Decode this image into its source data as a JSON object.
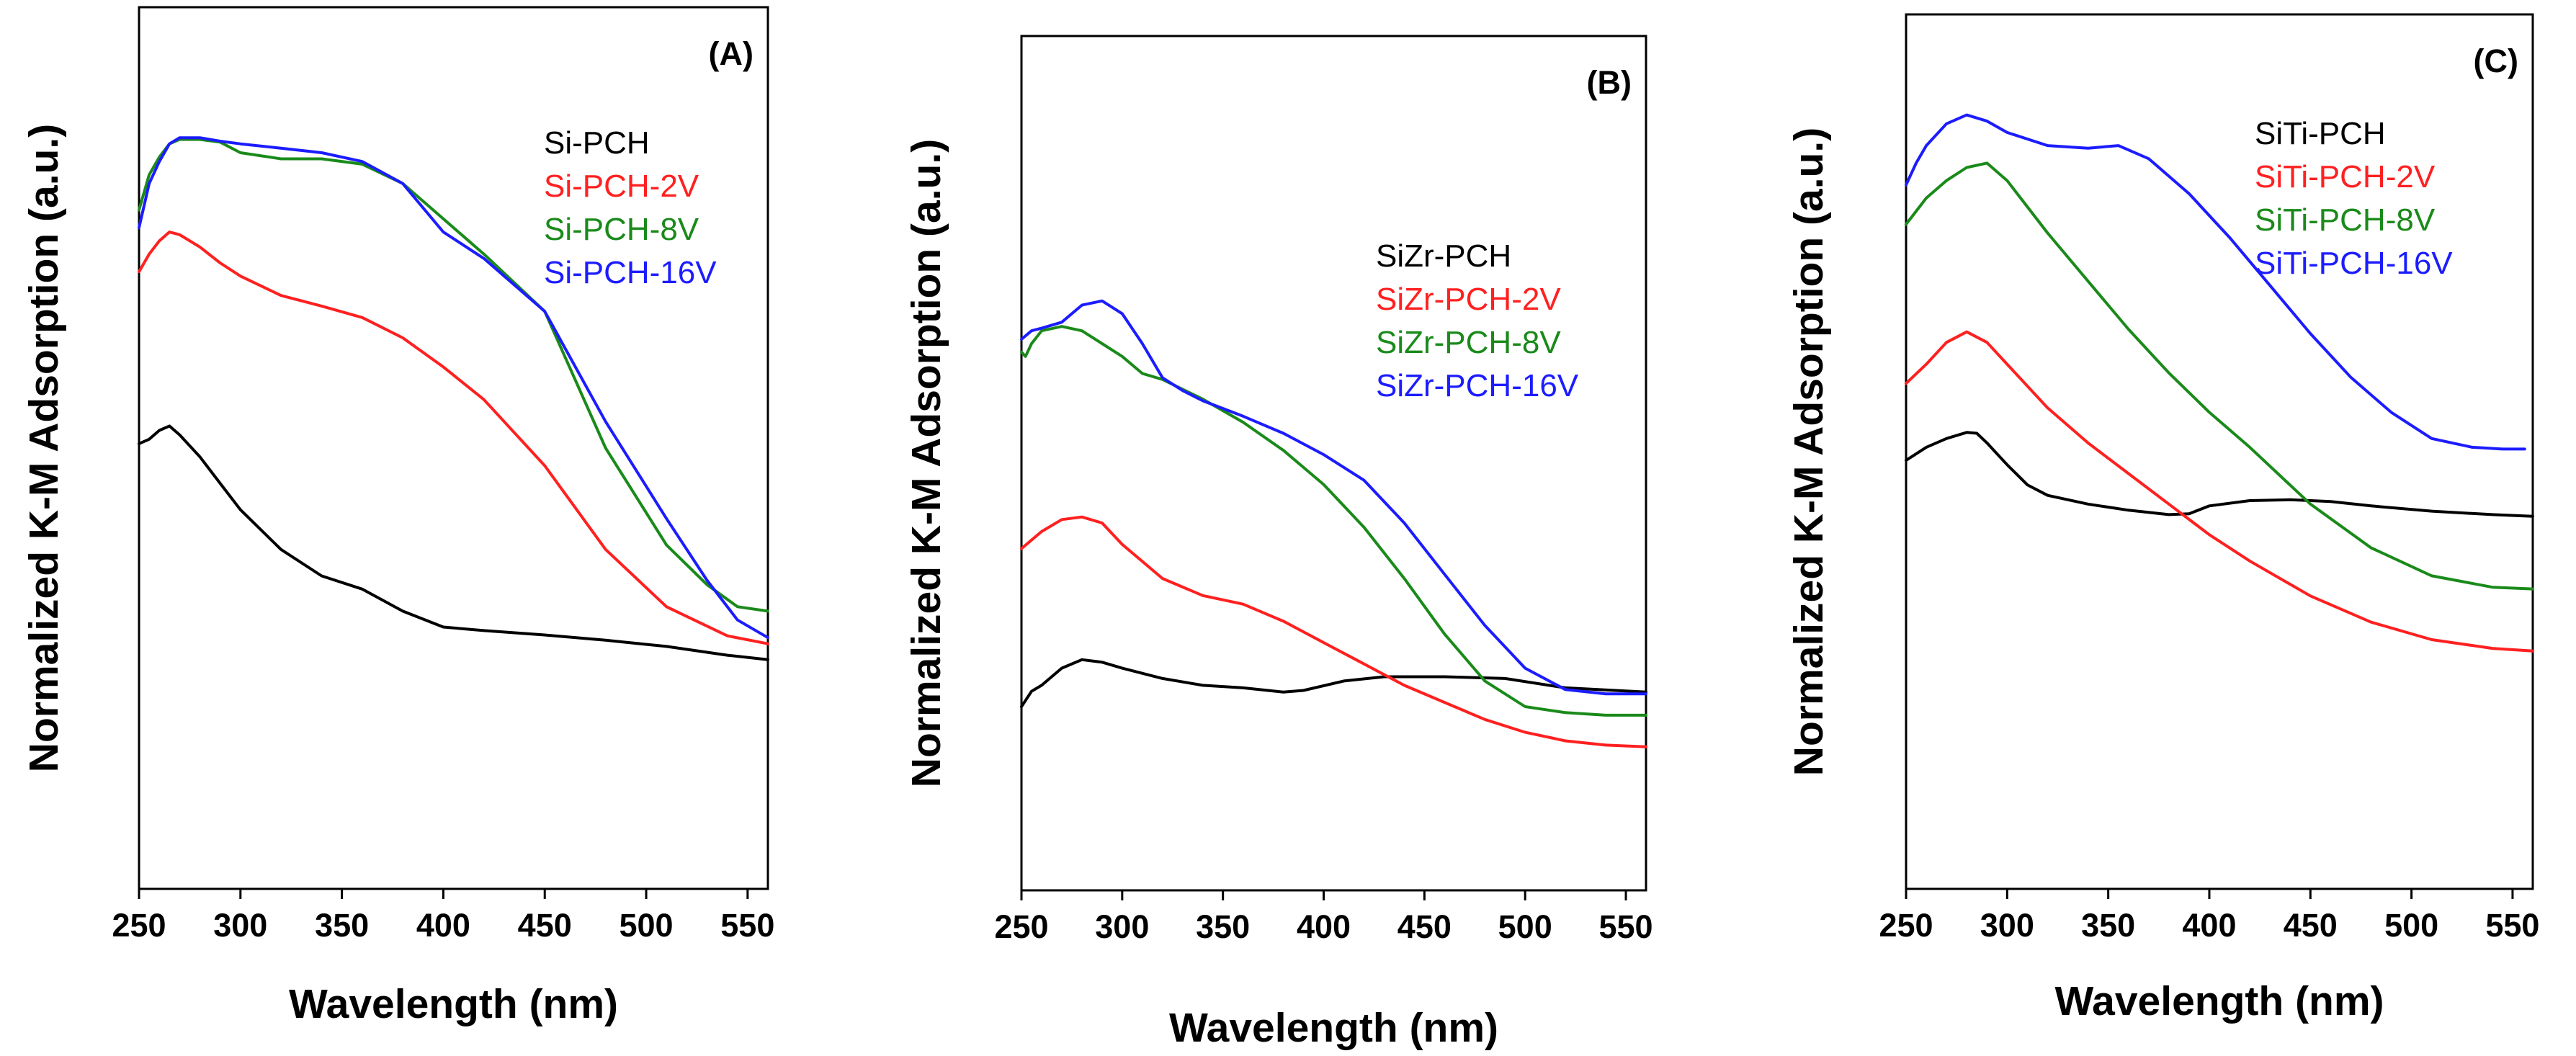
{
  "chart_data": [
    {
      "panel_label": "(A)",
      "type": "line",
      "xlabel": "Wavelength (nm)",
      "ylabel": "Normalized K-M Adsorption (a.u.)",
      "xlim": [
        250,
        560
      ],
      "ylim": [
        0,
        1
      ],
      "xticks": [
        250,
        300,
        350,
        400,
        450,
        500,
        550
      ],
      "series": [
        {
          "name": "Si-PCH",
          "color": "#000000",
          "x": [
            250,
            255,
            260,
            265,
            270,
            280,
            290,
            300,
            320,
            340,
            360,
            380,
            400,
            420,
            450,
            480,
            510,
            540,
            560
          ],
          "y": [
            0.505,
            0.51,
            0.52,
            0.525,
            0.515,
            0.49,
            0.46,
            0.43,
            0.385,
            0.355,
            0.34,
            0.315,
            0.297,
            0.293,
            0.288,
            0.282,
            0.275,
            0.265,
            0.26
          ]
        },
        {
          "name": "Si-PCH-2V",
          "color": "#ff2020",
          "x": [
            250,
            255,
            260,
            265,
            270,
            280,
            290,
            300,
            320,
            340,
            360,
            380,
            400,
            420,
            450,
            480,
            510,
            540,
            560
          ],
          "y": [
            0.7,
            0.72,
            0.735,
            0.745,
            0.742,
            0.728,
            0.71,
            0.695,
            0.673,
            0.661,
            0.648,
            0.625,
            0.592,
            0.555,
            0.48,
            0.385,
            0.32,
            0.287,
            0.278
          ]
        },
        {
          "name": "Si-PCH-8V",
          "color": "#1a8a1a",
          "x": [
            250,
            255,
            260,
            265,
            270,
            280,
            290,
            300,
            320,
            340,
            360,
            380,
            400,
            420,
            450,
            480,
            510,
            530,
            545,
            560
          ],
          "y": [
            0.77,
            0.81,
            0.83,
            0.845,
            0.85,
            0.85,
            0.847,
            0.835,
            0.828,
            0.828,
            0.822,
            0.8,
            0.76,
            0.72,
            0.655,
            0.5,
            0.39,
            0.345,
            0.32,
            0.315
          ]
        },
        {
          "name": "Si-PCH-16V",
          "color": "#1c1cff",
          "x": [
            250,
            255,
            260,
            265,
            270,
            280,
            290,
            300,
            320,
            340,
            360,
            380,
            400,
            420,
            450,
            480,
            510,
            530,
            545,
            560
          ],
          "y": [
            0.75,
            0.8,
            0.825,
            0.845,
            0.852,
            0.852,
            0.848,
            0.845,
            0.84,
            0.835,
            0.825,
            0.8,
            0.745,
            0.715,
            0.655,
            0.53,
            0.42,
            0.35,
            0.305,
            0.285
          ]
        }
      ],
      "legend": {
        "placement": "top-right",
        "entries": [
          "Si-PCH",
          "Si-PCH-2V",
          "Si-PCH-8V",
          "Si-PCH-16V"
        ]
      }
    },
    {
      "panel_label": "(B)",
      "type": "line",
      "xlabel": "Wavelength (nm)",
      "ylabel": "Normalized K-M Adsorption (a.u.)",
      "xlim": [
        250,
        560
      ],
      "ylim": [
        0,
        1
      ],
      "xticks": [
        250,
        300,
        350,
        400,
        450,
        500,
        550
      ],
      "series": [
        {
          "name": "SiZr-PCH",
          "color": "#000000",
          "x": [
            250,
            255,
            260,
            270,
            280,
            290,
            300,
            320,
            340,
            360,
            380,
            390,
            410,
            430,
            460,
            490,
            520,
            560
          ],
          "y": [
            0.215,
            0.233,
            0.24,
            0.26,
            0.27,
            0.267,
            0.26,
            0.248,
            0.24,
            0.237,
            0.232,
            0.234,
            0.245,
            0.25,
            0.25,
            0.248,
            0.237,
            0.232
          ]
        },
        {
          "name": "SiZr-PCH-2V",
          "color": "#ff2020",
          "x": [
            250,
            255,
            260,
            270,
            280,
            290,
            300,
            320,
            340,
            360,
            380,
            400,
            420,
            440,
            460,
            480,
            500,
            520,
            540,
            560
          ],
          "y": [
            0.4,
            0.41,
            0.42,
            0.434,
            0.437,
            0.43,
            0.405,
            0.365,
            0.345,
            0.335,
            0.315,
            0.29,
            0.265,
            0.24,
            0.22,
            0.2,
            0.185,
            0.175,
            0.17,
            0.168
          ]
        },
        {
          "name": "SiZr-PCH-8V",
          "color": "#1a8a1a",
          "x": [
            250,
            252,
            255,
            260,
            270,
            280,
            290,
            300,
            310,
            320,
            340,
            360,
            380,
            400,
            420,
            440,
            460,
            480,
            500,
            520,
            540,
            560
          ],
          "y": [
            0.63,
            0.625,
            0.64,
            0.655,
            0.66,
            0.655,
            0.64,
            0.625,
            0.605,
            0.598,
            0.575,
            0.548,
            0.515,
            0.475,
            0.425,
            0.365,
            0.3,
            0.245,
            0.215,
            0.208,
            0.205,
            0.205
          ]
        },
        {
          "name": "SiZr-PCH-16V",
          "color": "#1c1cff",
          "x": [
            250,
            255,
            260,
            270,
            280,
            290,
            300,
            310,
            320,
            330,
            340,
            360,
            380,
            400,
            420,
            440,
            460,
            480,
            500,
            520,
            540,
            560
          ],
          "y": [
            0.645,
            0.655,
            0.658,
            0.665,
            0.685,
            0.69,
            0.675,
            0.64,
            0.6,
            0.585,
            0.573,
            0.555,
            0.535,
            0.51,
            0.48,
            0.43,
            0.37,
            0.31,
            0.26,
            0.235,
            0.23,
            0.23
          ]
        }
      ],
      "legend": {
        "placement": "top-right",
        "entries": [
          "SiZr-PCH",
          "SiZr-PCH-2V",
          "SiZr-PCH-8V",
          "SiZr-PCH-16V"
        ]
      }
    },
    {
      "panel_label": "(C)",
      "type": "line",
      "xlabel": "Wavelength (nm)",
      "ylabel": "Normalized K-M Adsorption (a.u.)",
      "xlim": [
        250,
        560
      ],
      "ylim": [
        0,
        1
      ],
      "xticks": [
        250,
        300,
        350,
        400,
        450,
        500,
        550
      ],
      "series": [
        {
          "name": "SiTi-PCH",
          "color": "#000000",
          "x": [
            250,
            260,
            270,
            280,
            285,
            290,
            300,
            310,
            320,
            340,
            360,
            380,
            390,
            400,
            420,
            440,
            460,
            480,
            510,
            540,
            560
          ],
          "y": [
            0.49,
            0.505,
            0.515,
            0.522,
            0.521,
            0.51,
            0.485,
            0.462,
            0.45,
            0.44,
            0.433,
            0.428,
            0.429,
            0.438,
            0.444,
            0.445,
            0.443,
            0.438,
            0.432,
            0.428,
            0.426
          ]
        },
        {
          "name": "SiTi-PCH-2V",
          "color": "#ff2020",
          "x": [
            250,
            260,
            270,
            280,
            290,
            300,
            320,
            340,
            360,
            380,
            400,
            420,
            450,
            480,
            510,
            540,
            560
          ],
          "y": [
            0.578,
            0.6,
            0.625,
            0.637,
            0.625,
            0.6,
            0.55,
            0.51,
            0.475,
            0.44,
            0.405,
            0.375,
            0.335,
            0.305,
            0.285,
            0.275,
            0.272
          ]
        },
        {
          "name": "SiTi-PCH-8V",
          "color": "#1a8a1a",
          "x": [
            250,
            260,
            270,
            280,
            290,
            300,
            320,
            340,
            360,
            380,
            400,
            420,
            450,
            480,
            510,
            540,
            560
          ],
          "y": [
            0.76,
            0.79,
            0.81,
            0.825,
            0.83,
            0.81,
            0.75,
            0.695,
            0.64,
            0.59,
            0.545,
            0.505,
            0.44,
            0.39,
            0.358,
            0.345,
            0.343
          ]
        },
        {
          "name": "SiTi-PCH-16V",
          "color": "#1c1cff",
          "x": [
            250,
            255,
            260,
            270,
            280,
            290,
            300,
            320,
            340,
            355,
            370,
            390,
            410,
            430,
            450,
            470,
            490,
            510,
            530,
            545,
            556
          ],
          "y": [
            0.805,
            0.83,
            0.85,
            0.875,
            0.885,
            0.878,
            0.865,
            0.85,
            0.847,
            0.85,
            0.835,
            0.795,
            0.745,
            0.69,
            0.635,
            0.585,
            0.545,
            0.515,
            0.505,
            0.503,
            0.503
          ]
        }
      ],
      "legend": {
        "placement": "top-right",
        "entries": [
          "SiTi-PCH",
          "SiTi-PCH-2V",
          "SiTi-PCH-8V",
          "SiTi-PCH-16V"
        ]
      }
    }
  ]
}
